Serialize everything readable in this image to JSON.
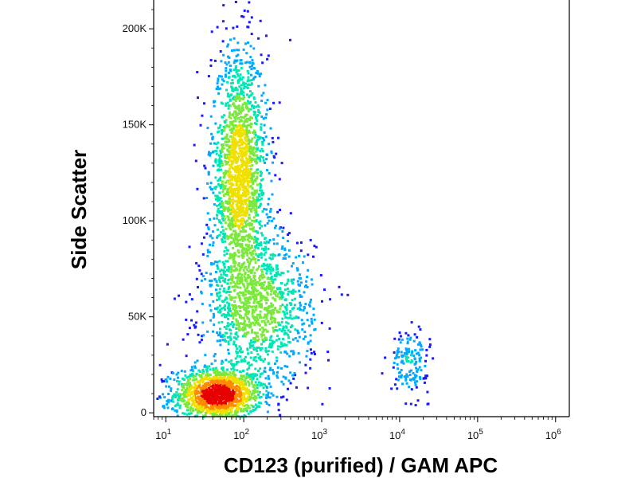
{
  "chart_data": {
    "type": "scatter",
    "subtype": "flow-cytometry density dot plot",
    "title": "",
    "xlabel": "CD123 (purified) / GAM APC",
    "ylabel": "Side Scatter",
    "x_scale": "log",
    "y_scale": "linear",
    "xlim": [
      7,
      1500000
    ],
    "ylim": [
      -2000,
      215000
    ],
    "grid": false,
    "legend": "none",
    "x_ticks": [
      {
        "value": 10,
        "base": "10",
        "exp": "1"
      },
      {
        "value": 100,
        "base": "10",
        "exp": "2"
      },
      {
        "value": 1000,
        "base": "10",
        "exp": "3"
      },
      {
        "value": 10000,
        "base": "10",
        "exp": "4"
      },
      {
        "value": 100000,
        "base": "10",
        "exp": "5"
      },
      {
        "value": 1000000,
        "base": "10",
        "exp": "6"
      }
    ],
    "y_ticks": [
      {
        "value": 0,
        "label": "0"
      },
      {
        "value": 50000,
        "label": "50K"
      },
      {
        "value": 100000,
        "label": "100K"
      },
      {
        "value": 150000,
        "label": "150K"
      },
      {
        "value": 200000,
        "label": "200K"
      }
    ],
    "density_colormap": [
      "#1a1aff",
      "#00aaff",
      "#00e6b4",
      "#7be83c",
      "#f0e000",
      "#ff8a00",
      "#e60000"
    ],
    "populations": [
      {
        "name": "",
        "x_center": 45,
        "x_spread_decades": 0.28,
        "y_center": 10000,
        "y_spread": 7000,
        "peak_density": 1.0
      },
      {
        "name": "",
        "x_center": 85,
        "x_spread_decades": 0.18,
        "y_center": 125000,
        "y_spread": 32000,
        "peak_density": 0.5
      },
      {
        "name": "",
        "x_center": 150,
        "x_spread_decades": 0.35,
        "y_center": 55000,
        "y_spread": 20000,
        "peak_density": 0.3
      },
      {
        "name": "",
        "x_center": 13000,
        "x_spread_decades": 0.12,
        "y_center": 27000,
        "y_spread": 8000,
        "peak_density": 0.12
      }
    ]
  }
}
